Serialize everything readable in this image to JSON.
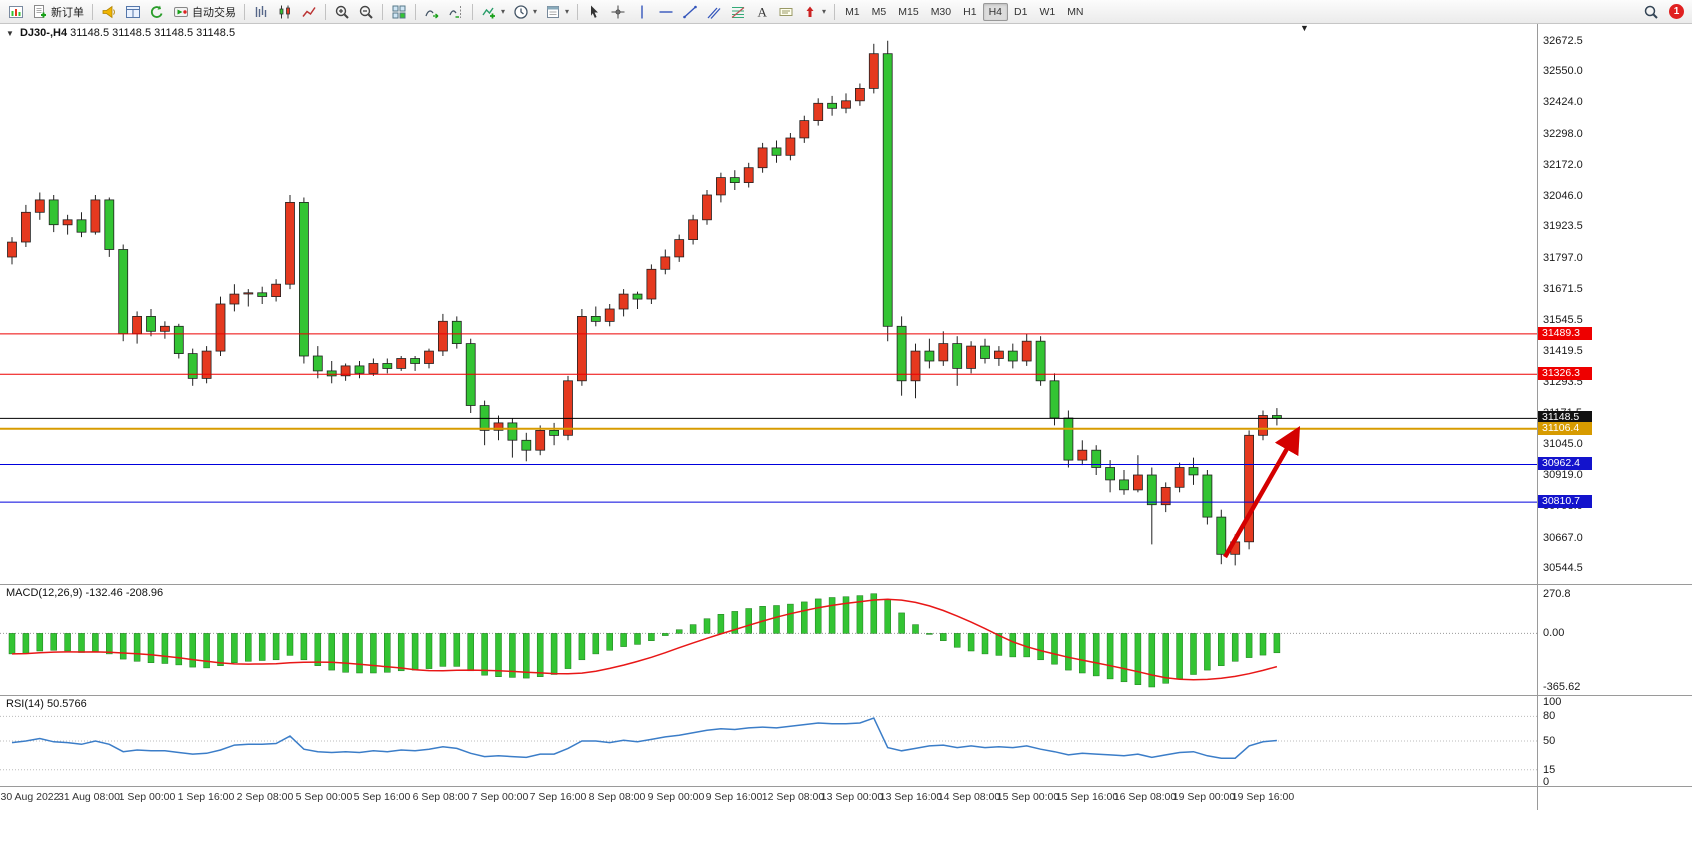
{
  "toolbar": {
    "groups": [
      {
        "items": [
          {
            "icon": "chart-window-icon"
          },
          {
            "icon": "new-order-icon",
            "label": "新订单"
          }
        ]
      },
      {
        "items": [
          {
            "icon": "announcement-icon"
          },
          {
            "icon": "data-window-icon"
          },
          {
            "icon": "refresh-icon"
          },
          {
            "icon": "autotrading-icon",
            "label": "自动交易"
          }
        ]
      },
      {
        "items": [
          {
            "icon": "bar-chart-icon"
          },
          {
            "icon": "candlestick-chart-icon"
          },
          {
            "icon": "line-chart-icon"
          }
        ]
      },
      {
        "items": [
          {
            "icon": "zoom-in-icon"
          },
          {
            "icon": "zoom-out-icon"
          }
        ]
      },
      {
        "items": [
          {
            "icon": "tile-windows-icon"
          }
        ]
      },
      {
        "items": [
          {
            "icon": "auto-scroll-icon"
          },
          {
            "icon": "chart-shift-icon"
          }
        ]
      },
      {
        "items": [
          {
            "icon": "indicators-icon",
            "caret": true
          },
          {
            "icon": "periods-icon",
            "caret": true
          },
          {
            "icon": "templates-icon",
            "caret": true
          }
        ]
      },
      {
        "items": [
          {
            "icon": "cursor-icon"
          },
          {
            "icon": "crosshair-icon"
          },
          {
            "icon": "vertical-line-icon"
          },
          {
            "icon": "horizontal-line-icon"
          },
          {
            "icon": "trendline-icon"
          },
          {
            "icon": "channel-icon"
          },
          {
            "icon": "fibonacci-icon"
          },
          {
            "icon": "text-icon"
          },
          {
            "icon": "label-icon"
          },
          {
            "icon": "arrows-icon",
            "caret": true
          }
        ]
      }
    ],
    "timeframes": {
      "options": [
        "M1",
        "M5",
        "M15",
        "M30",
        "H1",
        "H4",
        "D1",
        "W1",
        "MN"
      ],
      "active": "H4"
    },
    "right": {
      "notification_count": "1"
    }
  },
  "chart_data": [
    {
      "type": "candlestick",
      "symbol_title": "DJ30-,H4",
      "quote_line": "31148.5 31148.5 31148.5 31148.5",
      "ylim": [
        30480,
        32740
      ],
      "y_ticks": [
        "32672.5",
        "32550.0",
        "32424.0",
        "32298.0",
        "32172.0",
        "32046.0",
        "31923.5",
        "31797.0",
        "31671.5",
        "31545.5",
        "31419.5",
        "31293.5",
        "31171.5",
        "31045.0",
        "30919.0",
        "30793.0",
        "30667.0",
        "30544.5"
      ],
      "badges": [
        {
          "value": "31489.3",
          "color": "#ee0000"
        },
        {
          "value": "31326.3",
          "color": "#ee0000"
        },
        {
          "value": "31148.5",
          "color": "#111111"
        },
        {
          "value": "31106.4",
          "color": "#d79b00"
        },
        {
          "value": "30962.4",
          "color": "#1313cc"
        },
        {
          "value": "30810.7",
          "color": "#1313cc"
        }
      ],
      "levels": [
        {
          "price": 31489.3,
          "color": "#ee0000",
          "width": 1
        },
        {
          "price": 31326.3,
          "color": "#ee0000",
          "width": 1
        },
        {
          "price": 31148.5,
          "color": "#000000",
          "width": 1
        },
        {
          "price": 31106.4,
          "color": "#d79b00",
          "width": 2
        },
        {
          "price": 30962.4,
          "color": "#0000dd",
          "width": 1
        },
        {
          "price": 30810.7,
          "color": "#0000dd",
          "width": 1
        }
      ],
      "x_labels": [
        "30 Aug 2022",
        "31 Aug 08:00",
        "1 Sep 00:00",
        "1 Sep 16:00",
        "2 Sep 08:00",
        "5 Sep 00:00",
        "5 Sep 16:00",
        "6 Sep 08:00",
        "7 Sep 00:00",
        "7 Sep 16:00",
        "8 Sep 08:00",
        "9 Sep 00:00",
        "9 Sep 16:00",
        "12 Sep 08:00",
        "13 Sep 00:00",
        "13 Sep 16:00",
        "14 Sep 08:00",
        "15 Sep 00:00",
        "15 Sep 16:00",
        "16 Sep 08:00",
        "19 Sep 00:00",
        "19 Sep 16:00"
      ],
      "colors": {
        "bull": "#e5391f",
        "bear": "#33c433",
        "wick": "#222222"
      },
      "annotation": {
        "type": "up-arrow",
        "color": "#d40000",
        "from_price": 30590,
        "to_price": 31090
      },
      "candles": [
        [
          31800,
          31880,
          31770,
          31860
        ],
        [
          31860,
          32010,
          31840,
          31980
        ],
        [
          31980,
          32060,
          31950,
          32030
        ],
        [
          32030,
          32050,
          31900,
          31930
        ],
        [
          31930,
          31970,
          31890,
          31950
        ],
        [
          31950,
          31980,
          31880,
          31900
        ],
        [
          31900,
          32050,
          31890,
          32030
        ],
        [
          32030,
          32040,
          31800,
          31830
        ],
        [
          31830,
          31850,
          31460,
          31490
        ],
        [
          31490,
          31580,
          31450,
          31560
        ],
        [
          31560,
          31590,
          31480,
          31500
        ],
        [
          31500,
          31540,
          31470,
          31520
        ],
        [
          31520,
          31530,
          31390,
          31410
        ],
        [
          31410,
          31430,
          31280,
          31310
        ],
        [
          31310,
          31440,
          31290,
          31420
        ],
        [
          31420,
          31640,
          31400,
          31610
        ],
        [
          31610,
          31690,
          31580,
          31650
        ],
        [
          31650,
          31670,
          31600,
          31655
        ],
        [
          31655,
          31680,
          31610,
          31640
        ],
        [
          31640,
          31710,
          31620,
          31690
        ],
        [
          31690,
          32050,
          31670,
          32020
        ],
        [
          32020,
          32040,
          31370,
          31400
        ],
        [
          31400,
          31440,
          31310,
          31340
        ],
        [
          31340,
          31380,
          31290,
          31320
        ],
        [
          31320,
          31370,
          31300,
          31360
        ],
        [
          31360,
          31380,
          31310,
          31330
        ],
        [
          31330,
          31390,
          31320,
          31370
        ],
        [
          31370,
          31390,
          31330,
          31350
        ],
        [
          31350,
          31400,
          31340,
          31390
        ],
        [
          31390,
          31400,
          31340,
          31370
        ],
        [
          31370,
          31430,
          31350,
          31420
        ],
        [
          31420,
          31570,
          31400,
          31540
        ],
        [
          31540,
          31560,
          31430,
          31450
        ],
        [
          31450,
          31470,
          31170,
          31200
        ],
        [
          31200,
          31220,
          31040,
          31100
        ],
        [
          31100,
          31160,
          31060,
          31130
        ],
        [
          31130,
          31150,
          30990,
          31060
        ],
        [
          31060,
          31090,
          30975,
          31020
        ],
        [
          31020,
          31120,
          31000,
          31100
        ],
        [
          31100,
          31130,
          31040,
          31080
        ],
        [
          31080,
          31320,
          31060,
          31300
        ],
        [
          31300,
          31590,
          31280,
          31560
        ],
        [
          31560,
          31600,
          31520,
          31540
        ],
        [
          31540,
          31610,
          31520,
          31590
        ],
        [
          31590,
          31670,
          31560,
          31650
        ],
        [
          31650,
          31660,
          31590,
          31630
        ],
        [
          31630,
          31770,
          31610,
          31750
        ],
        [
          31750,
          31830,
          31730,
          31800
        ],
        [
          31800,
          31890,
          31780,
          31870
        ],
        [
          31870,
          31970,
          31850,
          31950
        ],
        [
          31950,
          32070,
          31930,
          32050
        ],
        [
          32050,
          32140,
          32020,
          32120
        ],
        [
          32120,
          32150,
          32070,
          32100
        ],
        [
          32100,
          32180,
          32080,
          32160
        ],
        [
          32160,
          32260,
          32140,
          32240
        ],
        [
          32240,
          32270,
          32180,
          32210
        ],
        [
          32210,
          32300,
          32190,
          32280
        ],
        [
          32280,
          32370,
          32260,
          32350
        ],
        [
          32350,
          32440,
          32330,
          32420
        ],
        [
          32420,
          32450,
          32370,
          32400
        ],
        [
          32400,
          32460,
          32380,
          32430
        ],
        [
          32430,
          32500,
          32410,
          32480
        ],
        [
          32480,
          32660,
          32460,
          32620
        ],
        [
          32620,
          32672,
          31460,
          31520
        ],
        [
          31520,
          31560,
          31240,
          31300
        ],
        [
          31300,
          31450,
          31230,
          31420
        ],
        [
          31420,
          31470,
          31350,
          31380
        ],
        [
          31380,
          31500,
          31360,
          31450
        ],
        [
          31450,
          31480,
          31280,
          31350
        ],
        [
          31350,
          31460,
          31330,
          31440
        ],
        [
          31440,
          31470,
          31370,
          31390
        ],
        [
          31390,
          31440,
          31360,
          31420
        ],
        [
          31420,
          31450,
          31350,
          31380
        ],
        [
          31380,
          31490,
          31360,
          31460
        ],
        [
          31460,
          31480,
          31280,
          31300
        ],
        [
          31300,
          31330,
          31120,
          31150
        ],
        [
          31150,
          31180,
          30950,
          30980
        ],
        [
          30980,
          31060,
          30960,
          31020
        ],
        [
          31020,
          31040,
          30920,
          30950
        ],
        [
          30950,
          30980,
          30850,
          30900
        ],
        [
          30900,
          30940,
          30840,
          30860
        ],
        [
          30860,
          31000,
          30850,
          30920
        ],
        [
          30920,
          30950,
          30640,
          30800
        ],
        [
          30800,
          30890,
          30770,
          30870
        ],
        [
          30870,
          30970,
          30850,
          30950
        ],
        [
          30950,
          30990,
          30880,
          30920
        ],
        [
          30920,
          30940,
          30720,
          30750
        ],
        [
          30750,
          30780,
          30560,
          30600
        ],
        [
          30600,
          30680,
          30555,
          30650
        ],
        [
          30650,
          31100,
          30620,
          31080
        ],
        [
          31080,
          31180,
          31060,
          31160
        ],
        [
          31160,
          31190,
          31120,
          31148.5
        ]
      ]
    },
    {
      "type": "bar",
      "name": "MACD(12,26,9)",
      "label": "MACD(12,26,9) -132.46 -208.96",
      "current_values": [
        -132.46,
        -208.96
      ],
      "ylim": [
        -420,
        330
      ],
      "y_ticks": [
        "270.8",
        "0.00",
        "-365.62"
      ],
      "colors": {
        "histogram": "#33c433",
        "signal": "#e81717"
      },
      "values": [
        -140,
        -135,
        -120,
        -115,
        -120,
        -130,
        -125,
        -140,
        -175,
        -190,
        -200,
        -205,
        -215,
        -230,
        -235,
        -220,
        -200,
        -190,
        -185,
        -180,
        -150,
        -180,
        -220,
        -250,
        -265,
        -270,
        -270,
        -265,
        -255,
        -250,
        -240,
        -225,
        -225,
        -255,
        -285,
        -295,
        -300,
        -305,
        -295,
        -280,
        -240,
        -180,
        -140,
        -115,
        -90,
        -75,
        -50,
        -15,
        25,
        60,
        100,
        130,
        150,
        170,
        185,
        190,
        200,
        215,
        235,
        245,
        250,
        258,
        270.8,
        230,
        140,
        60,
        0,
        -50,
        -95,
        -120,
        -140,
        -150,
        -160,
        -160,
        -180,
        -210,
        -250,
        -270,
        -290,
        -310,
        -330,
        -350,
        -365.6,
        -340,
        -310,
        -280,
        -250,
        -220,
        -190,
        -165,
        -148,
        -132.46
      ]
    },
    {
      "type": "line",
      "name": "RSI(14)",
      "label": "RSI(14) 50.5766",
      "current_value": 50.5766,
      "ylim": [
        0,
        100
      ],
      "levels": [
        80,
        50,
        15
      ],
      "y_ticks": [
        "100",
        "80",
        "50",
        "15",
        "0"
      ],
      "colors": {
        "line": "#3b7dc8"
      },
      "values": [
        48,
        50,
        53,
        49,
        48,
        46,
        50,
        46,
        37,
        39,
        38,
        38,
        36,
        34,
        35,
        39,
        45,
        46,
        46,
        47,
        56,
        40,
        37,
        36,
        37,
        36,
        38,
        37,
        39,
        38,
        40,
        43,
        41,
        35,
        31,
        32,
        31,
        30,
        34,
        34,
        41,
        50,
        50,
        48,
        51,
        49,
        52,
        55,
        57,
        60,
        63,
        65,
        64,
        66,
        67,
        66,
        68,
        70,
        72,
        71,
        71,
        72,
        78,
        42,
        38,
        41,
        44,
        45,
        42,
        44,
        42,
        43,
        42,
        44,
        40,
        37,
        33,
        35,
        34,
        33,
        32,
        34,
        30,
        33,
        36,
        37,
        32,
        29,
        29,
        44,
        49,
        50.58
      ]
    }
  ]
}
